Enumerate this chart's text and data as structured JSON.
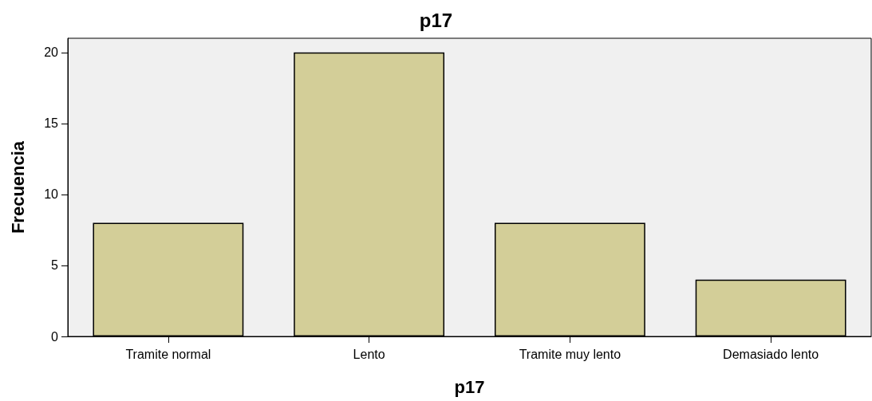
{
  "chart_data": {
    "type": "bar",
    "title": "p17",
    "xlabel": "p17",
    "ylabel": "Frecuencia",
    "categories": [
      "Tramite normal",
      "Lento",
      "Tramite muy lento",
      "Demasiado lento"
    ],
    "values": [
      8,
      20,
      8,
      4
    ],
    "color": "#d3ce98",
    "ylim": [
      0,
      21
    ],
    "yticks": [
      0,
      5,
      10,
      15,
      20
    ],
    "grid": false
  }
}
